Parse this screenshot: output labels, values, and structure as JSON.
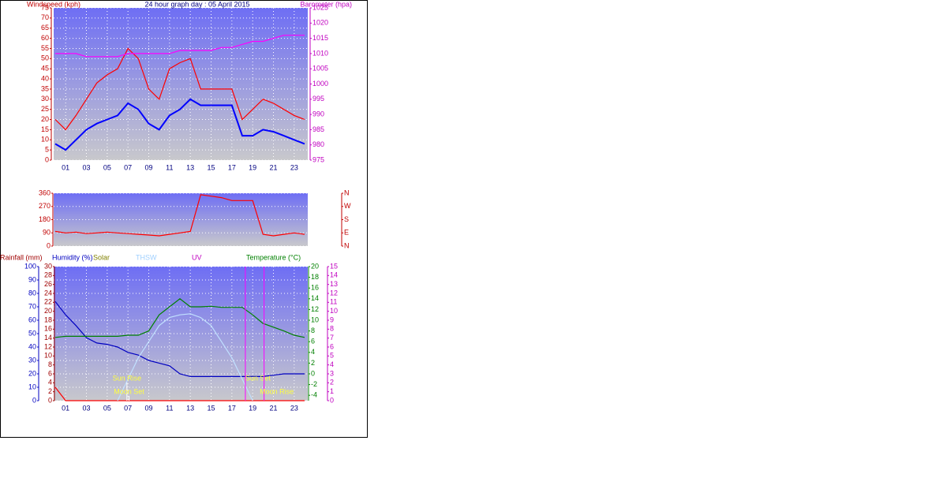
{
  "chart_data": [
    {
      "type": "line",
      "title": "24 hour graph day : 05 April 2015",
      "ylabel": "Windspeed (kph)",
      "y2label": "Barometer (hpa)",
      "xlim": [
        0,
        24
      ],
      "xticks": [
        {
          "value": 1,
          "label": "01"
        },
        {
          "value": 3,
          "label": "03"
        },
        {
          "value": 5,
          "label": "05"
        },
        {
          "value": 7,
          "label": "07"
        },
        {
          "value": 9,
          "label": "09"
        },
        {
          "value": 11,
          "label": "11"
        },
        {
          "value": 13,
          "label": "13"
        },
        {
          "value": 15,
          "label": "15"
        },
        {
          "value": 17,
          "label": "17"
        },
        {
          "value": 19,
          "label": "19"
        },
        {
          "value": 21,
          "label": "21"
        },
        {
          "value": 23,
          "label": "23"
        }
      ],
      "ylim": [
        0,
        75
      ],
      "yticks": [
        0,
        5,
        10,
        15,
        20,
        25,
        30,
        35,
        40,
        45,
        50,
        55,
        60,
        65,
        70,
        75
      ],
      "y2lim": [
        975,
        1025
      ],
      "y2ticks": [
        975,
        980,
        985,
        990,
        995,
        1000,
        1005,
        1010,
        1015,
        1020,
        1025
      ],
      "grid": true,
      "x": [
        0,
        1,
        2,
        3,
        4,
        5,
        6,
        7,
        8,
        9,
        10,
        11,
        12,
        13,
        14,
        15,
        16,
        17,
        18,
        19,
        20,
        21,
        22,
        23,
        24
      ],
      "series": [
        {
          "color": "#ff0000",
          "values": [
            20,
            15,
            22,
            30,
            38,
            42,
            45,
            55,
            50,
            35,
            30,
            45,
            48,
            50,
            35,
            35,
            35,
            35,
            20,
            25,
            30,
            28,
            25,
            22,
            20
          ]
        },
        {
          "color": "#0000ff",
          "values": [
            8,
            5,
            10,
            15,
            18,
            20,
            22,
            28,
            25,
            18,
            15,
            22,
            25,
            30,
            27,
            27,
            27,
            27,
            12,
            12,
            15,
            14,
            12,
            10,
            8
          ]
        },
        {
          "color": "#ff00ff",
          "axis": "y2",
          "values": [
            1010,
            1010,
            1010,
            1009,
            1009,
            1009,
            1009,
            1010,
            1010,
            1010,
            1010,
            1010,
            1011,
            1011,
            1011,
            1011,
            1012,
            1012,
            1013,
            1014,
            1014,
            1015,
            1016,
            1016,
            1016
          ]
        }
      ]
    },
    {
      "type": "line",
      "xlim": [
        0,
        24
      ],
      "ylim": [
        0,
        360
      ],
      "yticks": [
        0,
        90,
        180,
        270,
        360
      ],
      "y2lim": [
        0,
        360
      ],
      "y2ticks": [
        {
          "value": 0,
          "label": "N"
        },
        {
          "value": 90,
          "label": "E"
        },
        {
          "value": 180,
          "label": "S"
        },
        {
          "value": 270,
          "label": "W"
        },
        {
          "value": 360,
          "label": "N"
        }
      ],
      "grid": true,
      "x": [
        0,
        1,
        2,
        3,
        4,
        5,
        6,
        7,
        8,
        9,
        10,
        11,
        12,
        13,
        14,
        15,
        16,
        17,
        18,
        19,
        20,
        21,
        22,
        23,
        24
      ],
      "series": [
        {
          "color": "#ff0000",
          "values": [
            100,
            90,
            95,
            85,
            90,
            95,
            90,
            85,
            80,
            75,
            70,
            80,
            90,
            100,
            350,
            340,
            330,
            310,
            310,
            310,
            80,
            70,
            80,
            90,
            80
          ]
        }
      ]
    },
    {
      "type": "line",
      "xlim": [
        0,
        24
      ],
      "xticks": [
        {
          "value": 1,
          "label": "01"
        },
        {
          "value": 3,
          "label": "03"
        },
        {
          "value": 5,
          "label": "05"
        },
        {
          "value": 7,
          "label": "07"
        },
        {
          "value": 9,
          "label": "09"
        },
        {
          "value": 11,
          "label": "11"
        },
        {
          "value": 13,
          "label": "13"
        },
        {
          "value": 15,
          "label": "15"
        },
        {
          "value": 17,
          "label": "17"
        },
        {
          "value": 19,
          "label": "19"
        },
        {
          "value": 21,
          "label": "21"
        },
        {
          "value": 23,
          "label": "23"
        }
      ],
      "ylim": [
        0,
        100
      ],
      "yticks": [
        0,
        10,
        20,
        30,
        40,
        50,
        60,
        70,
        80,
        90,
        100
      ],
      "y3lim": [
        0,
        30
      ],
      "y3ticks": [
        0,
        2,
        4,
        6,
        8,
        10,
        12,
        14,
        16,
        18,
        20,
        22,
        24,
        26,
        28,
        30
      ],
      "y2lim": [
        -5,
        20
      ],
      "y2ticks": [
        -4,
        -2,
        0,
        2,
        4,
        6,
        8,
        10,
        12,
        14,
        16,
        18,
        20
      ],
      "y4lim": [
        0,
        15
      ],
      "y4ticks": [
        0,
        1,
        2,
        3,
        4,
        5,
        6,
        7,
        8,
        9,
        10,
        11,
        12,
        13,
        14,
        15
      ],
      "grid": true,
      "labels": [
        "Solar",
        "UV"
      ],
      "annotations": [
        {
          "text": "Sun Rise",
          "x": 6.9
        },
        {
          "text": "Moon Set",
          "x": 7.1
        },
        {
          "text": "Sun Set",
          "x": 18.3
        },
        {
          "text": "Moon Rise",
          "x": 20.1
        }
      ],
      "x": [
        0,
        1,
        2,
        3,
        4,
        5,
        6,
        7,
        8,
        9,
        10,
        11,
        12,
        13,
        14,
        15,
        16,
        17,
        18,
        19,
        20,
        21,
        22,
        23,
        24
      ],
      "series": [
        {
          "name": "Rainfall (mm)",
          "color": "#ff0000",
          "axis": "y3",
          "values": [
            3,
            0,
            0,
            0,
            0,
            0,
            0,
            0,
            0,
            0,
            0,
            0,
            0,
            0,
            0,
            0,
            0,
            0,
            0,
            0,
            0,
            0,
            0,
            0,
            0
          ]
        },
        {
          "name": "Humidity (%)",
          "color": "#0000c0",
          "values": [
            74,
            64,
            56,
            47,
            43,
            42,
            40,
            36,
            34,
            30,
            28,
            26,
            20,
            18,
            18,
            18,
            18,
            18,
            18,
            18,
            18,
            19,
            20,
            20,
            20
          ]
        },
        {
          "name": "THSW",
          "color": "#c0e0ff",
          "axis": "y2",
          "values": [
            null,
            null,
            null,
            null,
            null,
            null,
            -5,
            -1,
            3,
            6,
            9,
            10.5,
            11,
            11.2,
            10.5,
            9,
            6,
            3,
            -1,
            -5,
            null,
            null,
            null,
            null,
            null
          ]
        },
        {
          "name": "Temperature (°C)",
          "color": "#008000",
          "axis": "y2",
          "values": [
            6.8,
            7,
            7,
            7,
            7,
            7,
            7,
            7.2,
            7.2,
            8,
            11,
            12.5,
            14,
            12.5,
            12.5,
            12.6,
            12.4,
            12.4,
            12.4,
            11,
            9.4,
            8.7,
            8,
            7.2,
            6.8
          ]
        }
      ]
    }
  ]
}
